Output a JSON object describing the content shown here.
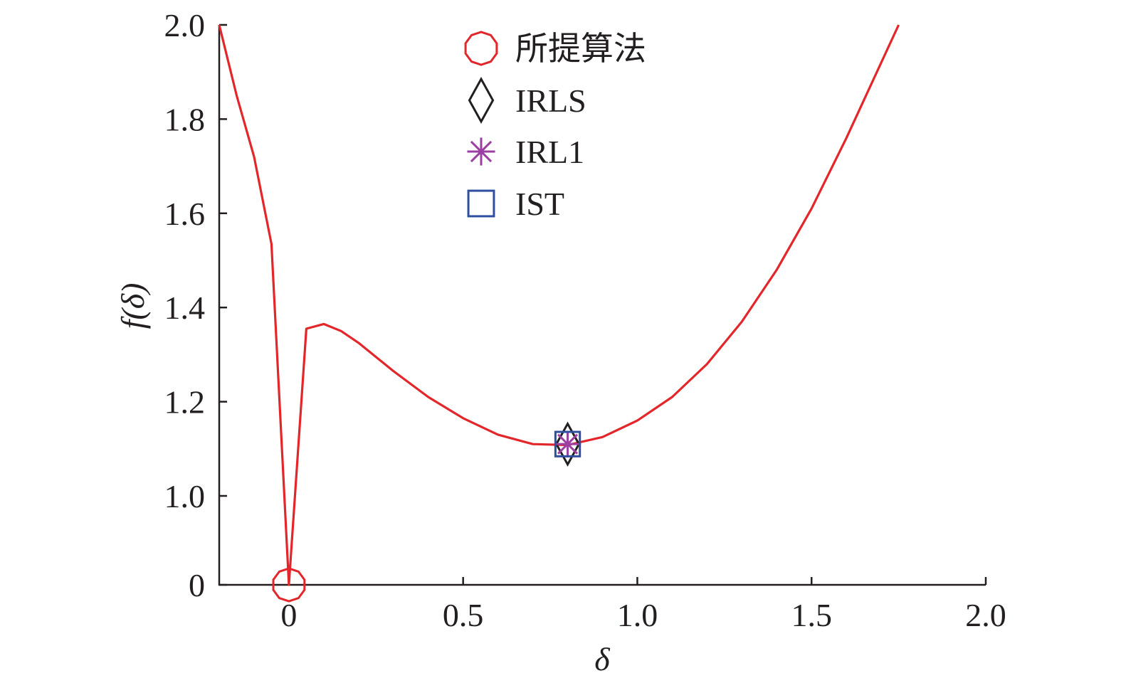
{
  "chart_data": {
    "type": "line",
    "xlabel": "δ",
    "ylabel": "f(δ)",
    "xlim": [
      -0.2,
      2.0
    ],
    "x_ticks": [
      0,
      0.5,
      1.0,
      1.5,
      2.0
    ],
    "x_tick_labels": [
      "0",
      "0.5",
      "1.0",
      "1.5",
      "2.0"
    ],
    "y_tick_labels": [
      "0",
      "1.0",
      "1.2",
      "1.4",
      "1.6",
      "1.8",
      "2.0"
    ],
    "y_axis_note": "broken axis: jumps from 0 to 1.0",
    "grid": false,
    "legend_position": "top-center",
    "series": [
      {
        "role": "curve",
        "color": "#e3262a",
        "x": [
          -0.2,
          -0.15,
          -0.1,
          -0.05,
          0,
          0.05,
          0.1,
          0.15,
          0.2,
          0.3,
          0.4,
          0.5,
          0.6,
          0.7,
          0.8,
          0.9,
          1.0,
          1.1,
          1.2,
          1.3,
          1.4,
          1.5,
          1.6,
          1.7,
          1.75
        ],
        "y": [
          2.0,
          1.85,
          1.72,
          1.535,
          0,
          1.355,
          1.365,
          1.35,
          1.325,
          1.265,
          1.21,
          1.165,
          1.13,
          1.11,
          1.108,
          1.125,
          1.16,
          1.21,
          1.28,
          1.37,
          1.48,
          1.61,
          1.76,
          1.92,
          2.0
        ]
      }
    ],
    "markers": [
      {
        "name": "所提算法",
        "symbol": "circle",
        "color": "#e3262a",
        "x": 0,
        "y": 0
      },
      {
        "name": "IRLS",
        "symbol": "diamond",
        "color": "#231f20",
        "x": 0.8,
        "y": 1.11
      },
      {
        "name": "IRL1",
        "symbol": "asterisk",
        "color": "#9b3fa3",
        "x": 0.8,
        "y": 1.11
      },
      {
        "name": "IST",
        "symbol": "square",
        "color": "#2e4ea0",
        "x": 0.8,
        "y": 1.11
      }
    ]
  }
}
